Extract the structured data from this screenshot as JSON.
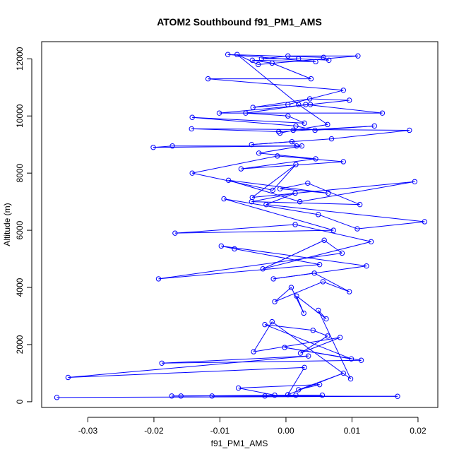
{
  "chart_data": {
    "type": "line",
    "title": "ATOM2 Southbound f91_PM1_AMS",
    "xlabel": "f91_PM1_AMS",
    "ylabel": "Altitude (m)",
    "xlim": [
      -0.037,
      0.023
    ],
    "ylim": [
      -200,
      12600
    ],
    "xticks": [
      -0.03,
      -0.02,
      -0.01,
      0.0,
      0.01,
      0.02
    ],
    "xtick_labels": [
      "-0.03",
      "-0.02",
      "-0.01",
      "0.00",
      "0.01",
      "0.02"
    ],
    "yticks": [
      0,
      2000,
      4000,
      6000,
      8000,
      10000,
      12000
    ],
    "ytick_labels": [
      "0",
      "2000",
      "4000",
      "6000",
      "8000",
      "10000",
      "12000"
    ],
    "marker": "open-circle",
    "colors": {
      "series": "#0000ff",
      "axes": "#000000",
      "background": "#ffffff"
    },
    "x": [
      -0.0347,
      0.0169,
      -0.0112,
      0.0055,
      -0.0173,
      -0.0159,
      0.0015,
      -0.0032,
      -0.0017,
      -0.0072,
      0.0051,
      0.0019,
      0.0087,
      0.0003,
      0.0028,
      -0.033,
      0.0034,
      -0.0188,
      0.0114,
      -0.0002,
      0.0099,
      -0.0032,
      0.0041,
      0.0063,
      0.0022,
      0.0082,
      -0.0049,
      -0.0021,
      0.0098,
      0.0049,
      0.0061,
      0.0016,
      0.0027,
      0.0008,
      -0.0017,
      0.0056,
      0.0096,
      0.0043,
      -0.0019,
      0.0122,
      -0.0098,
      -0.0078,
      0.0051,
      -0.0193,
      0.0085,
      0.0058,
      -0.0035,
      0.0129,
      0.0014,
      -0.0168,
      0.0072,
      -0.0094,
      0.0049,
      0.0108,
      0.021,
      -0.003,
      0.0014,
      -0.0052,
      0.0112,
      0.0033,
      -0.0009,
      0.0064,
      -0.0087,
      0.0021,
      0.0195,
      -0.0051,
      0.0015,
      -0.002,
      -0.0142,
      -0.0013,
      0.0087,
      -0.0068,
      0.0045,
      -0.0041,
      0.0024,
      -0.0172,
      -0.0201,
      0.0016,
      0.0009,
      -0.0052,
      0.0069,
      0.0187,
      -0.0143,
      -0.0011,
      0.0134,
      0.0044,
      0.0015,
      -0.0142,
      0.0028,
      0.0003,
      -0.0061,
      0.003,
      0.0146,
      -0.0101,
      0.0037,
      0.0096,
      0.0036,
      -0.005,
      0.0003,
      0.0087,
      -0.0118,
      0.0038,
      -0.0021,
      -0.0051,
      0.0045,
      -0.0088,
      0.0057,
      0.0065,
      0.0019,
      -0.0037,
      0.0003,
      0.0109,
      -0.0042,
      -0.0074,
      0.0019,
      0.0063,
      0.0011,
      -0.0009
    ],
    "y": [
      150,
      190,
      200,
      230,
      200,
      200,
      230,
      200,
      230,
      480,
      600,
      420,
      1000,
      250,
      1200,
      850,
      1600,
      1350,
      1450,
      1900,
      1500,
      2700,
      2500,
      2300,
      1700,
      2250,
      1750,
      2800,
      800,
      3200,
      2900,
      3700,
      3100,
      4000,
      3500,
      4200,
      3850,
      4500,
      4300,
      4750,
      5450,
      5350,
      4800,
      4300,
      5200,
      5650,
      4650,
      5600,
      6200,
      5900,
      6000,
      7100,
      6550,
      6050,
      6300,
      6900,
      7300,
      7000,
      6900,
      7650,
      7450,
      7300,
      7750,
      7000,
      7700,
      7150,
      8300,
      7400,
      8000,
      8600,
      8400,
      8150,
      8500,
      8700,
      8950,
      8950,
      8900,
      8950,
      9100,
      9000,
      9200,
      9500,
      9550,
      9450,
      9650,
      9500,
      9650,
      9950,
      9750,
      10000,
      10100,
      10400,
      10100,
      10100,
      10400,
      10550,
      10600,
      10300,
      10400,
      10900,
      11300,
      11300,
      11850,
      11950,
      11900,
      12150,
      12050,
      11950,
      12000,
      12000,
      12100,
      12100,
      11800,
      12150,
      10400,
      9700,
      9500,
      9400
    ]
  }
}
